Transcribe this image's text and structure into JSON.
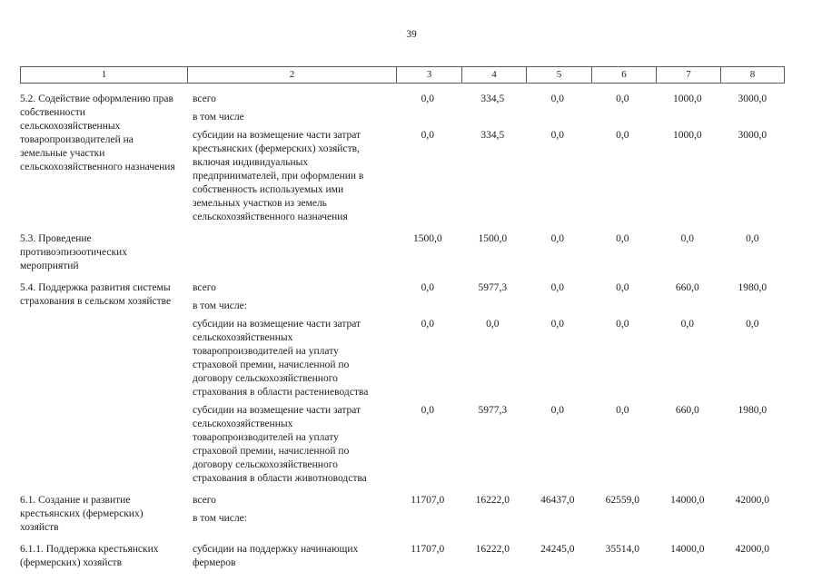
{
  "page_number": "39",
  "header": {
    "cols": [
      "1",
      "2",
      "3",
      "4",
      "5",
      "6",
      "7",
      "8"
    ]
  },
  "sections": [
    {
      "title": "5.2. Содействие оформлению прав собственности сельскохозяйственных товаропроизводителей на земельные участки сельскохозяйственного назначения",
      "rows": [
        {
          "label": "всего",
          "values": [
            "0,0",
            "334,5",
            "0,0",
            "0,0",
            "1000,0",
            "3000,0"
          ]
        },
        {
          "label": "в том числе",
          "values": []
        },
        {
          "label": "субсидии на возмещение части затрат крестьянских (фермерских) хозяйств, включая индивидуальных предпринимателей, при оформлении в собственность используемых ими земельных участков из земель сельскохозяйственного назначения",
          "values": [
            "0,0",
            "334,5",
            "0,0",
            "0,0",
            "1000,0",
            "3000,0"
          ]
        }
      ]
    },
    {
      "title": "5.3. Проведение противоэпизоотических мероприятий",
      "rows": [
        {
          "label": "",
          "values": [
            "1500,0",
            "1500,0",
            "0,0",
            "0,0",
            "0,0",
            "0,0"
          ]
        }
      ]
    },
    {
      "title": "5.4. Поддержка развития системы страхования в сельском хозяйстве",
      "rows": [
        {
          "label": "всего",
          "values": [
            "0,0",
            "5977,3",
            "0,0",
            "0,0",
            "660,0",
            "1980,0"
          ]
        },
        {
          "label": "в том числе:",
          "values": []
        },
        {
          "label": "субсидии на возмещение части затрат сельскохозяйственных товаропроизводителей на уплату страховой премии, начисленной по договору сельскохозяйственного страхования в области растениеводства",
          "values": [
            "0,0",
            "0,0",
            "0,0",
            "0,0",
            "0,0",
            "0,0"
          ]
        },
        {
          "label": "субсидии на возмещение части затрат сельскохозяйственных товаропроизводителей на уплату страховой премии, начисленной по договору сельскохозяйственного страхования в области животноводства",
          "values": [
            "0,0",
            "5977,3",
            "0,0",
            "0,0",
            "660,0",
            "1980,0"
          ]
        }
      ]
    },
    {
      "title": "6.1. Создание и развитие крестьянских (фермерских) хозяйств",
      "rows": [
        {
          "label": "всего",
          "values": [
            "11707,0",
            "16222,0",
            "46437,0",
            "62559,0",
            "14000,0",
            "42000,0"
          ]
        },
        {
          "label": "в том числе:",
          "values": []
        }
      ]
    },
    {
      "title": "6.1.1. Поддержка крестьянских (фермерских) хозяйств",
      "rows": [
        {
          "label": "субсидии на поддержку начинающих фермеров",
          "values": [
            "11707,0",
            "16222,0",
            "24245,0",
            "35514,0",
            "14000,0",
            "42000,0"
          ]
        }
      ]
    }
  ]
}
